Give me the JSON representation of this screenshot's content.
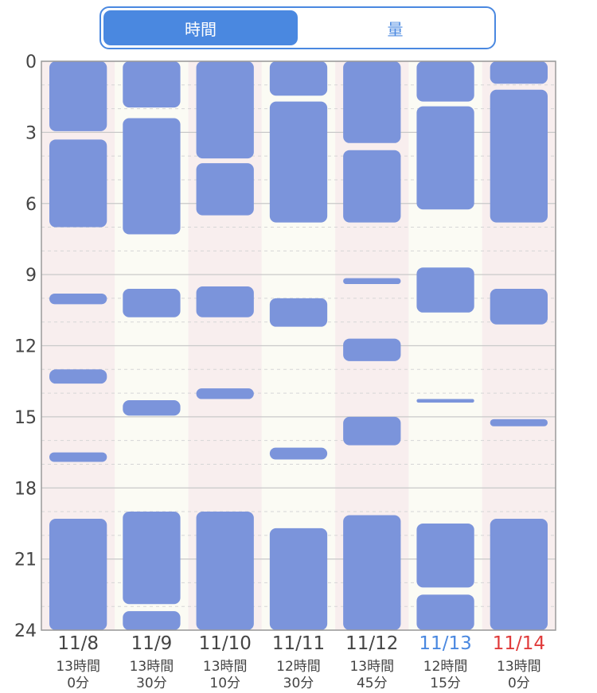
{
  "tabs": [
    {
      "label": "時間",
      "active": true
    },
    {
      "label": "量",
      "active": false
    }
  ],
  "colors": {
    "accent": "#4a88e0",
    "bar": "#7b94db",
    "band_weekday": "#f8eeee",
    "band_saturday": "#fbfbf4",
    "saturday_text": "#4a88e0",
    "sunday_text": "#e03a3a",
    "text": "#444444"
  },
  "chart_data": {
    "type": "bar",
    "ylim": [
      0,
      24
    ],
    "y_ticks": [
      "0",
      "3",
      "6",
      "9",
      "12",
      "15",
      "18",
      "21",
      "24"
    ],
    "days": [
      {
        "date": "11/8",
        "total_line1": "13時間",
        "total_line2": "0分",
        "color": "default",
        "sleeps": [
          [
            0,
            2.95
          ],
          [
            3.3,
            7.0
          ],
          [
            9.8,
            10.25
          ],
          [
            13.0,
            13.6
          ],
          [
            16.5,
            16.9
          ],
          [
            19.3,
            24
          ]
        ]
      },
      {
        "date": "11/9",
        "total_line1": "13時間",
        "total_line2": "30分",
        "color": "default",
        "sleeps": [
          [
            0,
            1.95
          ],
          [
            2.4,
            7.3
          ],
          [
            9.6,
            10.8
          ],
          [
            14.3,
            14.95
          ],
          [
            19.0,
            22.9
          ],
          [
            23.2,
            24
          ]
        ]
      },
      {
        "date": "11/10",
        "total_line1": "13時間",
        "total_line2": "10分",
        "color": "default",
        "sleeps": [
          [
            0,
            4.1
          ],
          [
            4.3,
            6.5
          ],
          [
            9.5,
            10.8
          ],
          [
            13.8,
            14.25
          ],
          [
            19.0,
            24
          ]
        ]
      },
      {
        "date": "11/11",
        "total_line1": "12時間",
        "total_line2": "30分",
        "color": "default",
        "sleeps": [
          [
            0,
            1.45
          ],
          [
            1.7,
            6.8
          ],
          [
            10.0,
            11.2
          ],
          [
            16.3,
            16.8
          ],
          [
            19.7,
            24
          ]
        ]
      },
      {
        "date": "11/12",
        "total_line1": "13時間",
        "total_line2": "45分",
        "color": "default",
        "sleeps": [
          [
            0,
            3.45
          ],
          [
            3.75,
            6.8
          ],
          [
            9.15,
            9.4
          ],
          [
            11.7,
            12.65
          ],
          [
            15.0,
            16.2
          ],
          [
            19.15,
            24
          ]
        ]
      },
      {
        "date": "11/13",
        "total_line1": "12時間",
        "total_line2": "15分",
        "color": "saturday",
        "sleeps": [
          [
            0,
            1.7
          ],
          [
            1.9,
            6.25
          ],
          [
            8.7,
            10.6
          ],
          [
            14.25,
            14.4
          ],
          [
            19.5,
            22.2
          ],
          [
            22.5,
            24
          ]
        ]
      },
      {
        "date": "11/14",
        "total_line1": "13時間",
        "total_line2": "0分",
        "color": "sunday",
        "sleeps": [
          [
            0,
            0.95
          ],
          [
            1.2,
            6.8
          ],
          [
            9.6,
            11.1
          ],
          [
            15.1,
            15.4
          ],
          [
            19.3,
            24
          ]
        ]
      }
    ]
  }
}
